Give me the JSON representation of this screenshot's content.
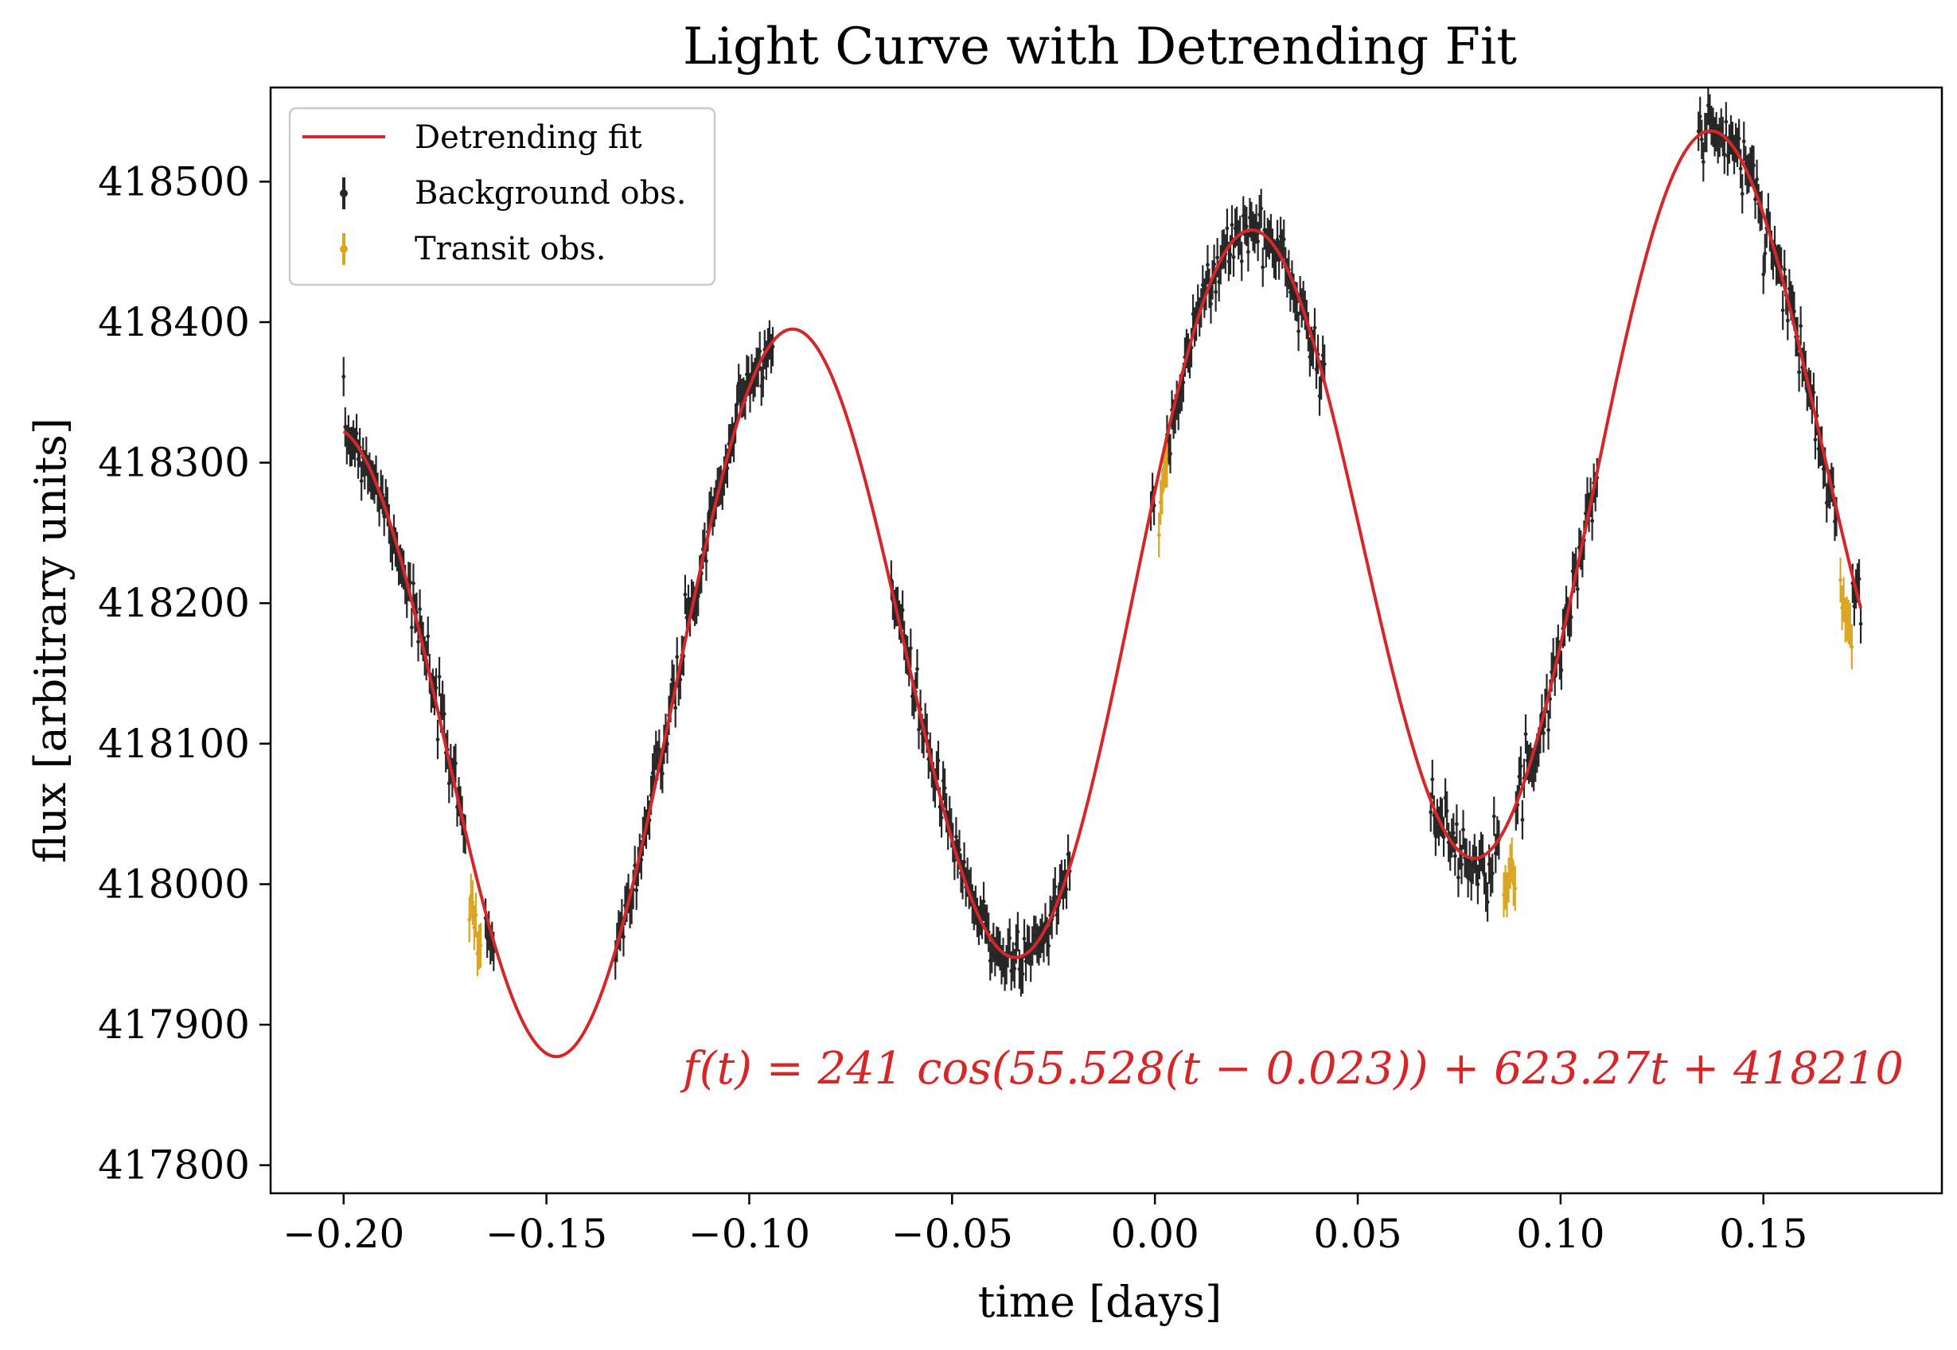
{
  "chart_data": {
    "type": "line",
    "title": "Light Curve with Detrending Fit",
    "xlabel": "time [days]",
    "ylabel": "flux [arbitrary units]",
    "xlim": [
      -0.218,
      0.194
    ],
    "ylim": [
      417780,
      418567
    ],
    "x_ticks": [
      -0.2,
      -0.15,
      -0.1,
      -0.05,
      0.0,
      0.05,
      0.1,
      0.15
    ],
    "x_tick_labels": [
      "−0.20",
      "−0.15",
      "−0.10",
      "−0.05",
      "0.00",
      "0.05",
      "0.10",
      "0.15"
    ],
    "y_ticks": [
      417800,
      417900,
      418000,
      418100,
      418200,
      418300,
      418400,
      418500
    ],
    "y_tick_labels": [
      "417800",
      "417900",
      "418000",
      "418100",
      "418200",
      "418300",
      "418400",
      "418500"
    ],
    "grid": false,
    "legend_position": "top-left",
    "colors": {
      "fit": "#d62728",
      "background": "#262626",
      "transit": "#daa520"
    },
    "annotation": "f(t) = 241 cos(55.528(t − 0.023)) + 623.27t + 418210",
    "series": [
      {
        "name": "Detrending fit",
        "kind": "line",
        "model": {
          "amplitude": 241,
          "frequency": 55.528,
          "phase": 0.023,
          "slope": 623.27,
          "offset": 418210
        },
        "x_range": [
          -0.2,
          0.174
        ],
        "samples": 600
      },
      {
        "name": "Background obs.",
        "kind": "errorbar",
        "segments": [
          [
            -0.2,
            -0.17
          ],
          [
            -0.165,
            -0.163
          ],
          [
            -0.133,
            -0.094
          ],
          [
            -0.065,
            -0.021
          ],
          [
            -0.001,
            0.0
          ],
          [
            0.003,
            0.042
          ],
          [
            0.068,
            0.085
          ],
          [
            0.089,
            0.109
          ],
          [
            0.134,
            0.168
          ],
          [
            0.172,
            0.174
          ]
        ],
        "step": 0.0004,
        "scatter": 10,
        "error": 14
      },
      {
        "name": "Transit obs.",
        "kind": "errorbar",
        "segments": [
          [
            -0.169,
            -0.166
          ],
          [
            0.001,
            0.003
          ],
          [
            0.086,
            0.089
          ],
          [
            0.169,
            0.172
          ]
        ],
        "step": 0.0004,
        "offsets": [
          -40,
          -25,
          -45,
          -45
        ],
        "scatter": 10,
        "error": 16
      }
    ]
  }
}
